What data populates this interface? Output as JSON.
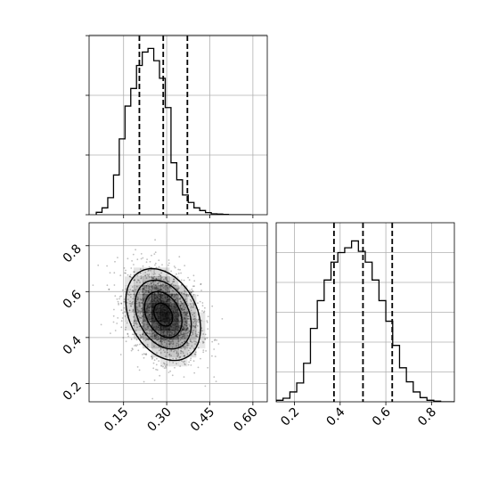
{
  "chart_data": [
    {
      "type": "histogram",
      "panel": "top-left",
      "variable_range": [
        0.03,
        0.65
      ],
      "bin_edges": [
        0.055,
        0.075,
        0.095,
        0.115,
        0.135,
        0.155,
        0.175,
        0.195,
        0.215,
        0.235,
        0.255,
        0.275,
        0.295,
        0.315,
        0.335,
        0.355,
        0.375,
        0.395,
        0.415,
        0.435,
        0.455,
        0.475,
        0.495,
        0.515,
        0.535,
        0.555,
        0.575,
        0.595
      ],
      "counts": [
        0.8,
        2.3,
        5.7,
        13.3,
        25.4,
        36.4,
        42.3,
        50.0,
        54.5,
        55.7,
        51.6,
        45.7,
        35.9,
        17.4,
        11.7,
        6.6,
        4.1,
        2.3,
        1.4,
        0.7,
        0.3,
        0.2,
        0.1,
        0,
        0,
        0,
        0
      ],
      "ylim": [
        0,
        60
      ],
      "quantile_lines": [
        0.205,
        0.288,
        0.372
      ],
      "grid": true
    },
    {
      "type": "histogram",
      "panel": "bottom-right",
      "variable_range": [
        0.12,
        0.9
      ],
      "xticks": [
        0.2,
        0.4,
        0.6,
        0.8
      ],
      "xtick_labels": [
        "0.2",
        "0.4",
        "0.6",
        "0.8"
      ],
      "bin_edges": [
        0.12,
        0.15,
        0.18,
        0.21,
        0.24,
        0.27,
        0.3,
        0.33,
        0.36,
        0.39,
        0.42,
        0.45,
        0.48,
        0.51,
        0.54,
        0.57,
        0.6,
        0.63,
        0.66,
        0.69,
        0.72,
        0.75,
        0.78,
        0.81,
        0.84,
        0.87,
        0.9
      ],
      "counts": [
        0.5,
        1.2,
        3.3,
        6.3,
        12.9,
        24.6,
        33.9,
        40.8,
        46.8,
        50.0,
        51.6,
        53.9,
        50.4,
        46.8,
        40.8,
        33.9,
        27.0,
        18.9,
        11.4,
        6.7,
        3.3,
        1.4,
        0.5,
        0.2,
        0,
        0
      ],
      "ylim": [
        0,
        60
      ],
      "quantile_lines": [
        0.373,
        0.5,
        0.628
      ],
      "grid": true
    },
    {
      "type": "scatter",
      "panel": "bottom-left",
      "description": "2D density: scatter points, shaded histogram, contour levels",
      "xlim": [
        0.03,
        0.65
      ],
      "ylim": [
        0.12,
        0.9
      ],
      "xticks": [
        0.15,
        0.3,
        0.45,
        0.6
      ],
      "xtick_labels": [
        "0.15",
        "0.30",
        "0.45",
        "0.60"
      ],
      "yticks": [
        0.2,
        0.4,
        0.6,
        0.8
      ],
      "ytick_labels": [
        "0.2",
        "0.4",
        "0.6",
        "0.8"
      ],
      "mean": [
        0.288,
        0.5
      ],
      "std": [
        0.065,
        0.1
      ],
      "correlation": -0.3,
      "contour_levels_sigma": [
        0.5,
        1.0,
        1.5,
        2.0
      ],
      "grid": true
    }
  ]
}
